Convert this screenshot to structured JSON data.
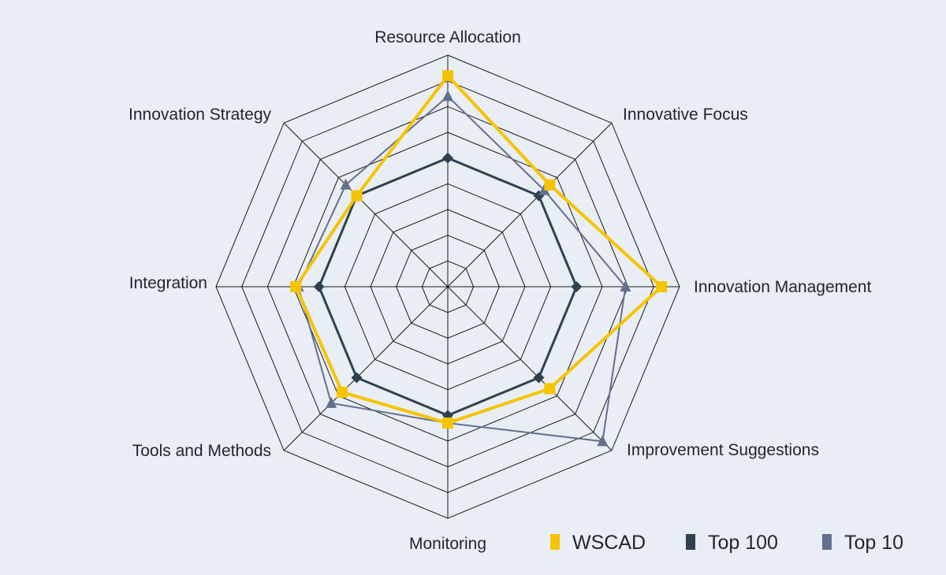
{
  "chart_data": {
    "type": "radar",
    "title": "",
    "axes": [
      "Resource Allocation",
      "Innovative Focus",
      "Innovation Management",
      "Improvement Suggestions",
      "Monitoring",
      "Tools and Methods",
      "Integration",
      "Innovation Strategy"
    ],
    "range": [
      0,
      9
    ],
    "rings": 9,
    "grid": true,
    "legend_position": "bottom-right",
    "series": [
      {
        "name": "WSCAD",
        "color": "#f5c400",
        "marker": "square",
        "values": [
          8.2,
          5.6,
          8.3,
          5.6,
          5.3,
          5.8,
          5.9,
          5.0
        ]
      },
      {
        "name": "Top 100",
        "color": "#2f4150",
        "marker": "diamond",
        "values": [
          5.0,
          5.0,
          5.0,
          5.0,
          5.0,
          5.0,
          5.0,
          5.0
        ]
      },
      {
        "name": "Top 10",
        "color": "#62708e",
        "marker": "triangle",
        "values": [
          7.4,
          5.3,
          6.9,
          8.5,
          5.3,
          6.4,
          5.8,
          5.6
        ]
      }
    ]
  }
}
